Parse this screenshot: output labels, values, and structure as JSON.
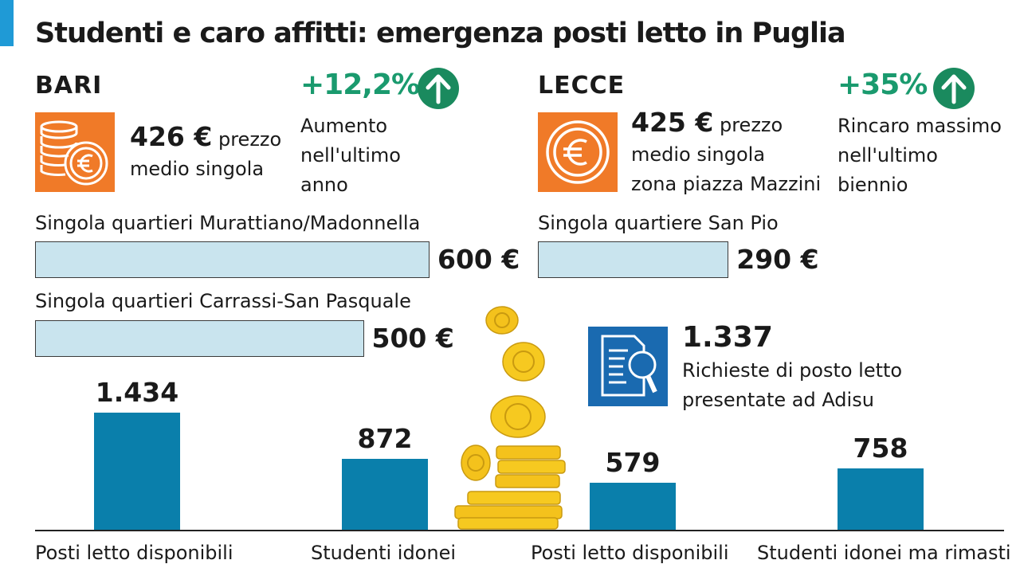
{
  "title": "Studenti e caro affitti: emergenza posti letto in Puglia",
  "bari": {
    "city": "BARI",
    "price": "426 €",
    "price_text_1": "prezzo",
    "price_text_2": "medio singola",
    "change": "+12,2%",
    "change_desc": [
      "Aumento",
      "nell'ultimo",
      "anno"
    ]
  },
  "lecce": {
    "city": "LECCE",
    "price": "425 €",
    "price_text_1": "prezzo",
    "price_text_2": "medio singola",
    "price_text_3": "zona piazza Mazzini",
    "change": "+35%",
    "change_desc": [
      "Rincaro massimo",
      "nell'ultimo",
      "biennio"
    ]
  },
  "adisu": {
    "number": "1.337",
    "desc_1": "Richieste di posto letto",
    "desc_2": "presentate ad Adisu"
  },
  "icons": [
    "coins-euro-icon",
    "euro-coin-icon",
    "arrow-up-icon",
    "document-search-icon",
    "coin-stack-illustration"
  ],
  "colors": {
    "bar_light": "#c9e4ee",
    "bar_dark": "#0a7fab",
    "accent_green": "#1a9a6e",
    "orange": "#f07a28",
    "doc_blue": "#1a6ab0"
  },
  "chart_data": [
    {
      "type": "bar",
      "orientation": "horizontal",
      "categories": [
        "Singola quartieri Murattiano/Madonnella",
        "Singola quartieri Carrassi-San Pasquale"
      ],
      "values": [
        600,
        500
      ],
      "value_labels": [
        "600 €",
        "500 €"
      ]
    },
    {
      "type": "bar",
      "orientation": "horizontal",
      "categories": [
        "Singola quartiere San Pio"
      ],
      "values": [
        290
      ],
      "value_labels": [
        "290 €"
      ]
    },
    {
      "type": "bar",
      "categories": [
        "Posti letto disponibili",
        "Studenti idonei",
        "Posti letto disponibili",
        "Studenti idonei ma rimasti"
      ],
      "values": [
        1434,
        872,
        579,
        758
      ],
      "value_labels": [
        "1.434",
        "872",
        "579",
        "758"
      ]
    }
  ]
}
